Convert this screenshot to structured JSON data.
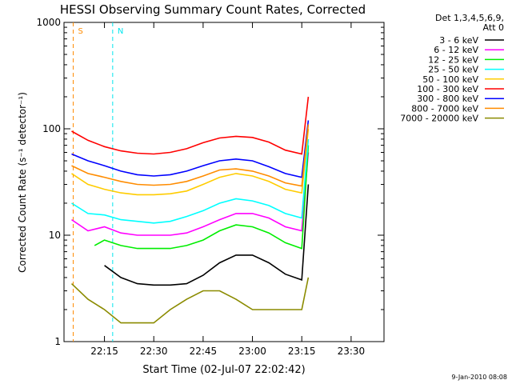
{
  "chart_data": {
    "type": "line",
    "title": "HESSI Observing Summary Count Rates, Corrected",
    "xlabel": "Start Time (02-Jul-07 22:02:42)",
    "ylabel": "Corrected Count Rate (s⁻¹ detector⁻¹)",
    "yscale": "log",
    "ylim": [
      1,
      1000
    ],
    "xlim": [
      "22:02:42",
      "23:40:00"
    ],
    "xticks": [
      "22:15",
      "22:30",
      "22:45",
      "23:00",
      "23:15",
      "23:30"
    ],
    "yticks": [
      "1",
      "10",
      "100",
      "1000"
    ],
    "grid": false,
    "legend_position": "right",
    "legend_header": [
      "Det 1,3,4,5,6,9,",
      "Att 0"
    ],
    "footer": "9-Jan-2010 08:08",
    "markers": [
      {
        "label": "S",
        "time": "22:05:30",
        "color": "#ff8c00"
      },
      {
        "label": "N",
        "time": "22:17:30",
        "color": "#00e5ee"
      }
    ],
    "series": [
      {
        "name": "3 - 6 keV",
        "color": "#000000",
        "x": [
          "22:15",
          "22:20",
          "22:25",
          "22:30",
          "22:35",
          "22:40",
          "22:45",
          "22:50",
          "22:55",
          "23:00",
          "23:05",
          "23:10",
          "23:15",
          "23:17"
        ],
        "y": [
          5.2,
          4.0,
          3.5,
          3.4,
          3.4,
          3.5,
          4.2,
          5.5,
          6.5,
          6.5,
          5.5,
          4.3,
          3.8,
          30
        ]
      },
      {
        "name": "6 - 12 keV",
        "color": "#ff00ff",
        "x": [
          "22:05",
          "22:10",
          "22:15",
          "22:20",
          "22:25",
          "22:30",
          "22:35",
          "22:40",
          "22:45",
          "22:50",
          "22:55",
          "23:00",
          "23:05",
          "23:10",
          "23:15",
          "23:17"
        ],
        "y": [
          14,
          11,
          12,
          10.5,
          10,
          10,
          10,
          10.5,
          12,
          14,
          16,
          16,
          14.5,
          12,
          11,
          60
        ]
      },
      {
        "name": "12 - 25 keV",
        "color": "#00ee00",
        "x": [
          "22:12",
          "22:15",
          "22:20",
          "22:25",
          "22:30",
          "22:35",
          "22:40",
          "22:45",
          "22:50",
          "22:55",
          "23:00",
          "23:05",
          "23:10",
          "23:15",
          "23:17"
        ],
        "y": [
          8,
          9,
          8,
          7.5,
          7.5,
          7.5,
          8,
          9,
          11,
          12.5,
          12,
          10.5,
          8.5,
          7.5,
          70
        ]
      },
      {
        "name": "25 - 50 keV",
        "color": "#00ffff",
        "x": [
          "22:05",
          "22:10",
          "22:15",
          "22:20",
          "22:25",
          "22:30",
          "22:35",
          "22:40",
          "22:45",
          "22:50",
          "22:55",
          "23:00",
          "23:05",
          "23:10",
          "23:15",
          "23:17"
        ],
        "y": [
          20,
          16,
          15.5,
          14,
          13.5,
          13,
          13.5,
          15,
          17,
          20,
          22,
          21,
          19,
          16,
          14.5,
          80
        ]
      },
      {
        "name": "50 - 100 keV",
        "color": "#ffcc00",
        "x": [
          "22:05",
          "22:10",
          "22:15",
          "22:20",
          "22:25",
          "22:30",
          "22:35",
          "22:40",
          "22:45",
          "22:50",
          "22:55",
          "23:00",
          "23:05",
          "23:10",
          "23:15",
          "23:17"
        ],
        "y": [
          38,
          30,
          27,
          25,
          24,
          24,
          24.5,
          26,
          30,
          35,
          38,
          36,
          32,
          27,
          25,
          100
        ]
      },
      {
        "name": "100 - 300 keV",
        "color": "#ff0000",
        "x": [
          "22:05",
          "22:10",
          "22:15",
          "22:20",
          "22:25",
          "22:30",
          "22:35",
          "22:40",
          "22:45",
          "22:50",
          "22:55",
          "23:00",
          "23:05",
          "23:10",
          "23:15",
          "23:17"
        ],
        "y": [
          95,
          78,
          68,
          62,
          59,
          58,
          60,
          65,
          74,
          82,
          85,
          83,
          75,
          63,
          58,
          200
        ]
      },
      {
        "name": "300 - 800 keV",
        "color": "#0000ff",
        "x": [
          "22:05",
          "22:10",
          "22:15",
          "22:20",
          "22:25",
          "22:30",
          "22:35",
          "22:40",
          "22:45",
          "22:50",
          "22:55",
          "23:00",
          "23:05",
          "23:10",
          "23:15",
          "23:17"
        ],
        "y": [
          58,
          50,
          45,
          40,
          37,
          36,
          37,
          40,
          45,
          50,
          52,
          50,
          44,
          38,
          35,
          120
        ]
      },
      {
        "name": "800 - 7000 keV",
        "color": "#ff8c00",
        "x": [
          "22:05",
          "22:10",
          "22:15",
          "22:20",
          "22:25",
          "22:30",
          "22:35",
          "22:40",
          "22:45",
          "22:50",
          "22:55",
          "23:00",
          "23:05",
          "23:10",
          "23:15",
          "23:17"
        ],
        "y": [
          45,
          38,
          35,
          32,
          30,
          29.5,
          30,
          32,
          36,
          41,
          42,
          40,
          36,
          31,
          29,
          110
        ]
      },
      {
        "name": "7000 - 20000 keV",
        "color": "#8b8b00",
        "x": [
          "22:05",
          "22:10",
          "22:15",
          "22:20",
          "22:25",
          "22:30",
          "22:35",
          "22:40",
          "22:45",
          "22:50",
          "22:55",
          "23:00",
          "23:05",
          "23:10",
          "23:15",
          "23:17"
        ],
        "y": [
          3.5,
          2.5,
          2.0,
          1.5,
          1.5,
          1.5,
          2.0,
          2.5,
          3.0,
          3.0,
          2.5,
          2.0,
          2.0,
          2.0,
          2.0,
          4.0
        ]
      }
    ]
  }
}
